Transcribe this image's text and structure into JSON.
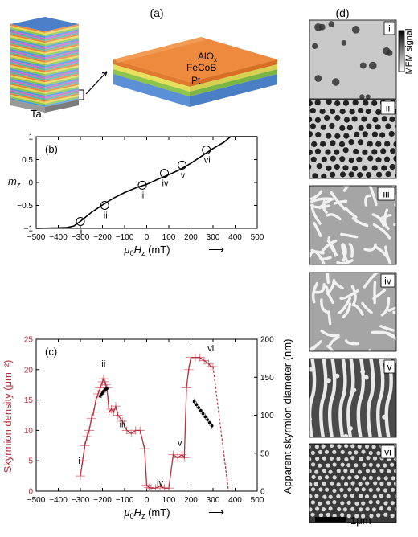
{
  "panel_a": {
    "label": "(a)",
    "stack_label": "Ta",
    "layers": [
      "AlO",
      "x",
      "FeCoB",
      "Pt"
    ],
    "colors": {
      "alox": "#e8833a",
      "fecob": "#8cc44e",
      "pt": "#4d7fc9",
      "ta": "#8a8a8a"
    }
  },
  "panel_b": {
    "label": "(b)",
    "ylabel_main": "m",
    "ylabel_sub": "z",
    "xlabel_main": "μ",
    "xlabel_sub0": "0",
    "xlabel_mid": "H",
    "xlabel_subz": "z",
    "xlabel_unit": " (mT)",
    "arrow": "⟶",
    "x_ticks": [
      "−500",
      "−400",
      "−300",
      "−200",
      "−100",
      "0",
      "100",
      "200",
      "300",
      "400",
      "500"
    ],
    "y_ticks": [
      "1",
      "0.5",
      "0",
      "−0.5",
      "−1"
    ],
    "markers": [
      "i",
      "ii",
      "iii",
      "iv",
      "v",
      "vi"
    ]
  },
  "panel_c": {
    "label": "(c)",
    "ylabel_left": "Skyrmion density (μm⁻²)",
    "ylabel_right": "Apparent skyrmion diameter (nm)",
    "xlabel_main": "μ",
    "xlabel_sub0": "0",
    "xlabel_mid": "H",
    "xlabel_subz": "z",
    "xlabel_unit": " (mT)",
    "arrow": "⟶",
    "x_ticks": [
      "−500",
      "−400",
      "−300",
      "−200",
      "−100",
      "0",
      "100",
      "200",
      "300",
      "400",
      "500"
    ],
    "yl_ticks": [
      "25",
      "20",
      "15",
      "10",
      "5",
      "0"
    ],
    "yr_ticks": [
      "200",
      "150",
      "100",
      "50",
      "0"
    ],
    "markers": [
      "i",
      "ii",
      "iii",
      "iv",
      "v",
      "vi"
    ],
    "colors": {
      "density": "#b5303f",
      "density_err": "#e06a74"
    }
  },
  "panel_d": {
    "label": "(d)",
    "images": [
      "i",
      "ii",
      "iii",
      "iv",
      "v",
      "vi"
    ],
    "colorbar_label": "MFM signal",
    "scalebar": "1μm"
  },
  "chart_data": [
    {
      "type": "line",
      "xlabel": "μ0Hz (mT)",
      "ylabel": "mz",
      "xlim": [
        -500,
        500
      ],
      "ylim": [
        -1,
        1
      ],
      "x": [
        -500,
        -400,
        -360,
        -330,
        -300,
        -250,
        -200,
        -150,
        -100,
        -50,
        0,
        50,
        100,
        150,
        200,
        250,
        300,
        350,
        380,
        400,
        500
      ],
      "series": [
        {
          "values": [
            -1,
            -0.99,
            -0.98,
            -0.95,
            -0.85,
            -0.65,
            -0.49,
            -0.34,
            -0.22,
            -0.12,
            -0.04,
            0.07,
            0.17,
            0.28,
            0.42,
            0.58,
            0.74,
            0.88,
            1.0,
            1.0,
            1.0
          ]
        }
      ],
      "markers": [
        {
          "label": "i",
          "x": -300,
          "y": -0.85
        },
        {
          "label": "ii",
          "x": -190,
          "y": -0.5
        },
        {
          "label": "iii",
          "x": -20,
          "y": -0.06
        },
        {
          "label": "iv",
          "x": 80,
          "y": 0.2
        },
        {
          "label": "v",
          "x": 160,
          "y": 0.38
        },
        {
          "label": "vi",
          "x": 270,
          "y": 0.71
        }
      ]
    },
    {
      "type": "line",
      "xlabel": "μ0Hz (mT)",
      "ylabel": "Skyrmion density (μm⁻²)",
      "ylabel_right": "Apparent skyrmion diameter (nm)",
      "xlim": [
        -500,
        500
      ],
      "ylim": [
        0,
        25
      ],
      "ylim_right": [
        0,
        200
      ],
      "series": [
        {
          "axis": "left",
          "x": [
            -300,
            -290,
            -280,
            -270,
            -260,
            -250,
            -240,
            -230,
            -220,
            -210,
            -200,
            -195,
            -190,
            -185,
            -180,
            -175,
            -170,
            -160,
            -150,
            -140,
            -130,
            -110,
            -90,
            -70,
            -50,
            -30,
            -10,
            0,
            10,
            20,
            40,
            60,
            80,
            100,
            120,
            140,
            160,
            170,
            180,
            190,
            200,
            220,
            240,
            260,
            280,
            290,
            300
          ],
          "values": [
            2.5,
            5,
            7.5,
            9,
            10,
            12,
            13,
            15,
            16,
            17,
            18,
            18.5,
            18,
            17.5,
            17,
            15,
            13,
            13.5,
            13,
            14,
            12.5,
            11.5,
            10,
            9.5,
            10,
            10,
            7,
            1,
            0.6,
            0.5,
            0.5,
            0.8,
            0.5,
            0.5,
            6,
            5.5,
            6,
            5.5,
            17,
            20,
            22,
            22,
            22,
            21.5,
            21,
            20.5,
            20.5
          ]
        },
        {
          "axis": "right",
          "x": [
            -210,
            -205,
            -200,
            -195,
            -190,
            -185,
            -180
          ],
          "values": [
            125,
            127,
            129,
            131,
            133,
            134,
            135
          ]
        },
        {
          "axis": "right",
          "x": [
            215,
            225,
            235,
            245,
            255,
            265,
            275,
            285,
            295
          ],
          "values": [
            118,
            114,
            110,
            106,
            102,
            98,
            94,
            90,
            86
          ]
        }
      ],
      "annotations": [
        "i",
        "ii",
        "iii",
        "iv",
        "v",
        "vi"
      ]
    }
  ]
}
